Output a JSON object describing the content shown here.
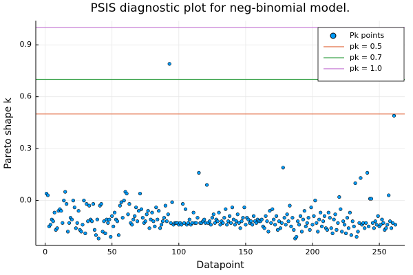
{
  "chart_data": {
    "type": "scatter",
    "title": "PSIS diagnostic plot for neg-binomial model.",
    "x_label": "Datapoint",
    "y_label": "Pareto shape k",
    "xlim": [
      -7,
      269
    ],
    "ylim": [
      -0.26,
      1.04
    ],
    "xticks": [
      0,
      50,
      100,
      150,
      200,
      250
    ],
    "yticks": [
      {
        "value": 0,
        "label": "0.0"
      },
      0.3,
      0.6,
      0.9
    ],
    "grid": true,
    "legend": "top-right",
    "series": [
      {
        "name": "Pk points",
        "color": "#009af9",
        "x": [
          1,
          2,
          3,
          4,
          5,
          6,
          7,
          8,
          9,
          10,
          11,
          12,
          13,
          14,
          15,
          16,
          17,
          18,
          19,
          20,
          21,
          22,
          23,
          24,
          25,
          26,
          27,
          28,
          29,
          30,
          31,
          32,
          33,
          34,
          35,
          36,
          37,
          38,
          39,
          40,
          41,
          42,
          43,
          44,
          45,
          46,
          47,
          48,
          49,
          50,
          51,
          52,
          53,
          54,
          55,
          56,
          57,
          58,
          59,
          60,
          61,
          62,
          63,
          64,
          65,
          66,
          67,
          68,
          69,
          70,
          71,
          72,
          73,
          74,
          75,
          76,
          77,
          78,
          79,
          80,
          81,
          82,
          83,
          84,
          85,
          86,
          87,
          88,
          89,
          90,
          91,
          92,
          93,
          94,
          95,
          96,
          97,
          98,
          99,
          100,
          101,
          102,
          103,
          104,
          105,
          106,
          107,
          108,
          109,
          110,
          111,
          112,
          113,
          114,
          115,
          116,
          117,
          118,
          119,
          120,
          121,
          122,
          123,
          124,
          125,
          126,
          127,
          128,
          129,
          130,
          131,
          132,
          133,
          134,
          135,
          136,
          137,
          138,
          139,
          140,
          141,
          142,
          143,
          144,
          145,
          146,
          147,
          148,
          149,
          150,
          151,
          152,
          153,
          154,
          155,
          156,
          157,
          158,
          159,
          160,
          161,
          162,
          163,
          164,
          165,
          166,
          167,
          168,
          169,
          170,
          171,
          172,
          173,
          174,
          175,
          176,
          177,
          178,
          179,
          180,
          181,
          182,
          183,
          184,
          185,
          186,
          187,
          188,
          189,
          190,
          191,
          192,
          193,
          194,
          195,
          196,
          197,
          198,
          199,
          200,
          201,
          202,
          203,
          204,
          205,
          206,
          207,
          208,
          209,
          210,
          211,
          212,
          213,
          214,
          215,
          216,
          217,
          218,
          219,
          220,
          221,
          222,
          223,
          224,
          225,
          226,
          227,
          228,
          229,
          230,
          231,
          232,
          233,
          234,
          235,
          236,
          237,
          238,
          239,
          240,
          241,
          242,
          243,
          244,
          245,
          246,
          247,
          248,
          249,
          250,
          251,
          252,
          253,
          254,
          255,
          256,
          257,
          258,
          259,
          260,
          261,
          262
        ],
        "values": [
          0.04,
          0.03,
          -0.15,
          -0.14,
          -0.11,
          -0.12,
          -0.07,
          -0.17,
          -0.16,
          -0.06,
          -0.05,
          -0.06,
          -0.13,
          0.0,
          0.05,
          -0.02,
          -0.18,
          -0.13,
          -0.1,
          -0.11,
          0.0,
          -0.04,
          -0.16,
          -0.13,
          -0.06,
          -0.17,
          -0.18,
          -0.14,
          0.0,
          -0.19,
          -0.02,
          -0.12,
          -0.03,
          -0.11,
          -0.12,
          -0.02,
          -0.17,
          -0.2,
          -0.11,
          -0.22,
          -0.03,
          -0.02,
          -0.18,
          -0.12,
          -0.19,
          -0.11,
          -0.13,
          -0.11,
          -0.21,
          -0.09,
          -0.15,
          -0.07,
          -0.11,
          -0.12,
          -0.2,
          -0.03,
          -0.01,
          -0.1,
          0.0,
          0.05,
          0.04,
          -0.08,
          -0.02,
          -0.13,
          -0.14,
          -0.11,
          -0.09,
          -0.04,
          -0.12,
          -0.06,
          0.04,
          -0.05,
          -0.1,
          -0.13,
          -0.12,
          -0.08,
          -0.06,
          -0.16,
          -0.11,
          -0.07,
          -0.12,
          -0.15,
          -0.04,
          -0.11,
          -0.06,
          -0.16,
          -0.14,
          -0.12,
          -0.1,
          -0.03,
          -0.12,
          -0.08,
          0.79,
          -0.13,
          -0.01,
          -0.14,
          -0.13,
          -0.13,
          -0.13,
          -0.14,
          -0.13,
          -0.14,
          -0.02,
          -0.13,
          -0.05,
          -0.14,
          -0.13,
          -0.11,
          -0.14,
          -0.13,
          -0.07,
          -0.13,
          -0.13,
          -0.1,
          0.16,
          -0.13,
          -0.13,
          -0.12,
          -0.11,
          -0.13,
          0.09,
          -0.13,
          -0.12,
          -0.14,
          -0.1,
          -0.08,
          -0.13,
          -0.11,
          -0.12,
          -0.07,
          -0.14,
          -0.12,
          -0.13,
          -0.1,
          -0.05,
          -0.14,
          -0.12,
          -0.09,
          -0.13,
          -0.04,
          -0.11,
          -0.14,
          -0.12,
          -0.08,
          -0.13,
          -0.16,
          -0.12,
          -0.1,
          -0.04,
          -0.14,
          -0.1,
          -0.11,
          -0.13,
          -0.12,
          -0.14,
          -0.09,
          -0.12,
          -0.13,
          -0.11,
          -0.12,
          -0.12,
          -0.11,
          -0.15,
          -0.16,
          -0.09,
          -0.12,
          -0.18,
          -0.06,
          -0.13,
          -0.05,
          -0.11,
          -0.14,
          -0.09,
          -0.17,
          -0.12,
          -0.16,
          -0.13,
          0.19,
          -0.1,
          -0.14,
          -0.08,
          -0.12,
          -0.03,
          -0.15,
          -0.1,
          -0.17,
          -0.22,
          -0.21,
          -0.12,
          -0.14,
          -0.09,
          -0.18,
          -0.11,
          -0.06,
          -0.15,
          -0.13,
          -0.1,
          -0.17,
          -0.04,
          -0.14,
          -0.09,
          0.0,
          -0.13,
          -0.18,
          -0.11,
          -0.07,
          -0.15,
          -0.12,
          -0.09,
          -0.16,
          -0.17,
          -0.07,
          -0.1,
          -0.16,
          -0.19,
          -0.11,
          -0.08,
          -0.17,
          -0.13,
          0.02,
          -0.05,
          -0.18,
          -0.12,
          -0.14,
          -0.19,
          -0.1,
          -0.16,
          -0.07,
          -0.2,
          -0.12,
          -0.15,
          0.1,
          -0.21,
          -0.18,
          -0.13,
          0.13,
          -0.14,
          -0.13,
          -0.16,
          -0.13,
          0.16,
          -0.15,
          0.01,
          0.01,
          -0.13,
          -0.16,
          -0.12,
          -0.14,
          -0.09,
          -0.15,
          -0.14,
          -0.11,
          -0.13,
          -0.17,
          -0.16,
          -0.14,
          0.03,
          -0.12,
          -0.16,
          -0.13,
          0.49,
          -0.14
        ]
      }
    ],
    "hlines": [
      {
        "name": "pk = 0.5",
        "color": "#e26f46",
        "value": 0.5
      },
      {
        "name": "pk = 0.7",
        "color": "#3da44d",
        "value": 0.7
      },
      {
        "name": "pk = 1.0",
        "color": "#c271d2",
        "value": 1.0
      }
    ]
  }
}
